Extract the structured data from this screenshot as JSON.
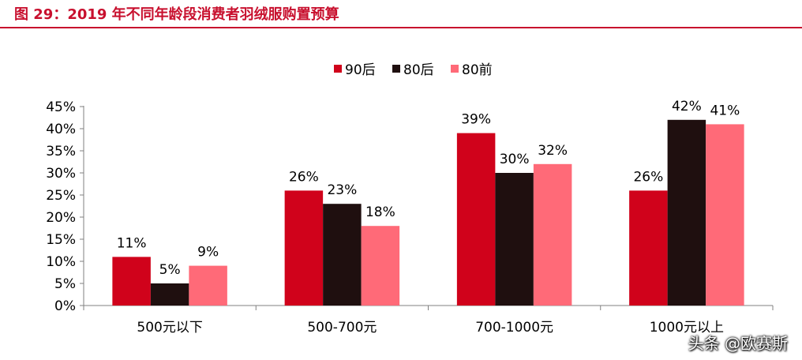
{
  "title": "图 29：2019 年不同年龄段消费者羽绒服购置预算",
  "watermark": "头条 @欧赛斯",
  "chart_data": {
    "type": "bar",
    "categories": [
      "500元以下",
      "500-700元",
      "700-1000元",
      "1000元以上"
    ],
    "series": [
      {
        "name": "90后",
        "color": "#d0021b",
        "values": [
          11,
          26,
          39,
          26
        ]
      },
      {
        "name": "80后",
        "color": "#1f0f0f",
        "values": [
          5,
          23,
          30,
          42
        ]
      },
      {
        "name": "80前",
        "color": "#ff6a78",
        "values": [
          9,
          18,
          32,
          41
        ]
      }
    ],
    "data_labels": [
      [
        "11%",
        "26%",
        "39%",
        "26%"
      ],
      [
        "5%",
        "23%",
        "30%",
        "42%"
      ],
      [
        "9%",
        "18%",
        "32%",
        "41%"
      ]
    ],
    "y_tick_labels": [
      "0%",
      "5%",
      "10%",
      "15%",
      "20%",
      "25%",
      "30%",
      "35%",
      "40%",
      "45%"
    ],
    "ylim": [
      0,
      45
    ],
    "xlabel": "",
    "ylabel": "",
    "legend_position": "top-center",
    "grid": false
  }
}
